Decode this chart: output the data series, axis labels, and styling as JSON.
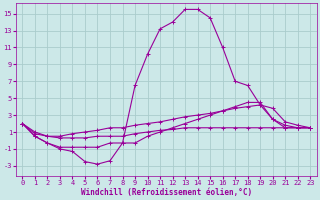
{
  "title": "",
  "xlabel": "Windchill (Refroidissement éolien,°C)",
  "background_color": "#cce8e8",
  "grid_color": "#aacccc",
  "line_color": "#990099",
  "x_ticks": [
    0,
    1,
    2,
    3,
    4,
    5,
    6,
    7,
    8,
    9,
    10,
    11,
    12,
    13,
    14,
    15,
    16,
    17,
    18,
    19,
    20,
    21,
    22,
    23
  ],
  "y_ticks": [
    -3,
    -1,
    1,
    3,
    5,
    7,
    9,
    11,
    13,
    15
  ],
  "xlim": [
    -0.5,
    23.5
  ],
  "ylim": [
    -4.2,
    16.2
  ],
  "curve1_x": [
    0,
    1,
    2,
    3,
    4,
    5,
    6,
    7,
    8,
    9,
    10,
    11,
    12,
    13,
    14,
    15,
    16,
    17,
    18,
    19,
    20,
    21,
    22,
    23
  ],
  "curve1_y": [
    2.0,
    0.5,
    -0.3,
    -1.0,
    -1.3,
    -2.5,
    -2.8,
    -2.4,
    -0.3,
    6.5,
    10.2,
    13.2,
    14.0,
    15.5,
    15.5,
    14.5,
    11.0,
    7.0,
    6.5,
    4.2,
    2.5,
    1.5,
    1.5,
    1.5
  ],
  "curve2_x": [
    0,
    1,
    2,
    3,
    4,
    5,
    6,
    7,
    8,
    9,
    10,
    11,
    12,
    13,
    14,
    15,
    16,
    17,
    18,
    19,
    20,
    21,
    22,
    23
  ],
  "curve2_y": [
    2.0,
    0.5,
    -0.3,
    -0.8,
    -0.8,
    -0.8,
    -0.8,
    -0.3,
    -0.3,
    -0.3,
    0.5,
    1.0,
    1.5,
    2.0,
    2.5,
    3.0,
    3.5,
    4.0,
    4.5,
    4.5,
    2.5,
    1.8,
    1.5,
    1.5
  ],
  "curve3_x": [
    0,
    1,
    2,
    3,
    4,
    5,
    6,
    7,
    8,
    9,
    10,
    11,
    12,
    13,
    14,
    15,
    16,
    17,
    18,
    19,
    20,
    21,
    22,
    23
  ],
  "curve3_y": [
    2.0,
    0.8,
    0.5,
    0.5,
    0.8,
    1.0,
    1.2,
    1.5,
    1.5,
    1.8,
    2.0,
    2.2,
    2.5,
    2.8,
    3.0,
    3.2,
    3.5,
    3.8,
    4.0,
    4.2,
    3.8,
    2.2,
    1.8,
    1.5
  ],
  "curve4_x": [
    0,
    1,
    2,
    3,
    4,
    5,
    6,
    7,
    8,
    9,
    10,
    11,
    12,
    13,
    14,
    15,
    16,
    17,
    18,
    19,
    20,
    21,
    22,
    23
  ],
  "curve4_y": [
    2.0,
    1.0,
    0.5,
    0.3,
    0.3,
    0.3,
    0.5,
    0.5,
    0.5,
    0.8,
    1.0,
    1.2,
    1.3,
    1.5,
    1.5,
    1.5,
    1.5,
    1.5,
    1.5,
    1.5,
    1.5,
    1.5,
    1.5,
    1.5
  ],
  "marker_size": 2.5,
  "line_width": 0.8,
  "tick_fontsize": 5,
  "xlabel_fontsize": 5.5
}
